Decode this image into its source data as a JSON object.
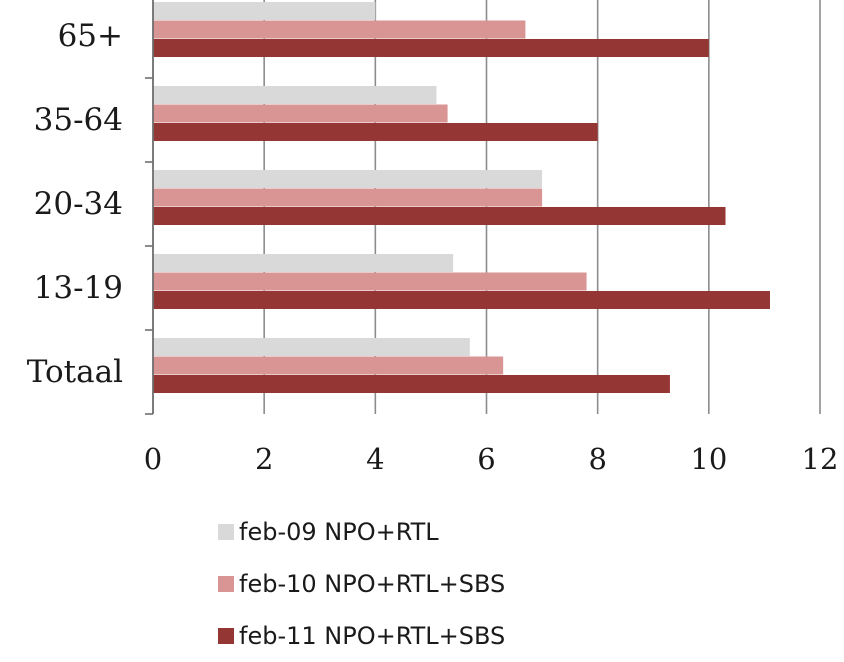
{
  "chart_data": {
    "type": "bar",
    "orientation": "horizontal",
    "categories": [
      "Totaal",
      "13-19",
      "20-34",
      "35-64",
      "65+"
    ],
    "series": [
      {
        "name": "feb-09 NPO+RTL",
        "values": [
          5.7,
          5.4,
          7.0,
          5.1,
          4.0
        ],
        "color": "#d9d9d9"
      },
      {
        "name": "feb-10 NPO+RTL+SBS",
        "values": [
          6.3,
          7.8,
          7.0,
          5.3,
          6.7
        ],
        "color": "#d99594"
      },
      {
        "name": "feb-11 NPO+RTL+SBS",
        "values": [
          9.3,
          11.1,
          10.3,
          8.0,
          10.0
        ],
        "color": "#943634"
      }
    ],
    "x_ticks": [
      "0",
      "2",
      "4",
      "6",
      "8",
      "10",
      "12"
    ],
    "xlim": [
      0,
      12
    ],
    "grid": true,
    "legend_position": "bottom",
    "title": "",
    "xlabel": "",
    "ylabel": ""
  }
}
